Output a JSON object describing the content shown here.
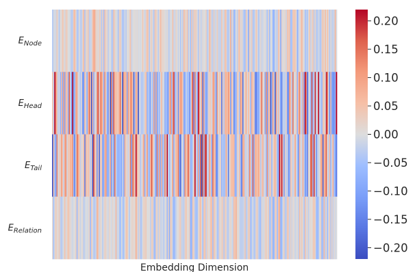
{
  "chart_data": {
    "type": "heatmap",
    "title": "",
    "xlabel": "Embedding Dimension",
    "ylabel": "",
    "rows": [
      {
        "label": "E",
        "sub": "Node",
        "spread": 0.06
      },
      {
        "label": "E",
        "sub": "Head",
        "spread": 0.17
      },
      {
        "label": "E",
        "sub": "Tail",
        "spread": 0.17
      },
      {
        "label": "E",
        "sub": "Relation",
        "spread": 0.06
      }
    ],
    "columns": 256,
    "x_ticks": [],
    "colormap": "coolwarm",
    "colorbar": {
      "min": -0.22,
      "max": 0.22,
      "ticks": [
        0.2,
        0.15,
        0.1,
        0.05,
        0.0,
        -0.05,
        -0.1,
        -0.15,
        -0.2
      ],
      "tick_labels": [
        "0.20",
        "0.15",
        "0.10",
        "0.05",
        "0.00",
        "−0.05",
        "−0.10",
        "−0.15",
        "−0.20"
      ]
    },
    "colors": {
      "low": "#3b4cc0",
      "mid": "#dddddd",
      "high": "#b40426"
    }
  }
}
